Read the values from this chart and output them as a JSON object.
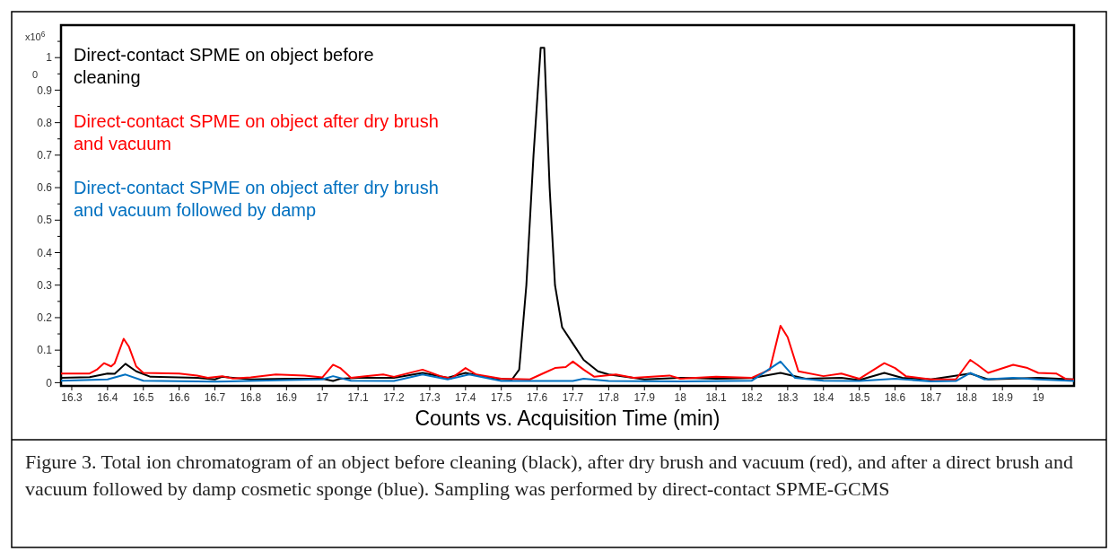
{
  "chart_data": {
    "type": "line",
    "xlabel": "Counts vs. Acquisition Time (min)",
    "ylabel": "x10$^{6}$",
    "xlim": [
      16.27,
      19.1
    ],
    "xticks": [
      16.3,
      16.4,
      16.5,
      16.6,
      16.7,
      16.8,
      16.9,
      17,
      17.1,
      17.2,
      17.3,
      17.4,
      17.5,
      17.6,
      17.7,
      17.8,
      17.9,
      18,
      18.1,
      18.2,
      18.3,
      18.4,
      18.5,
      18.6,
      18.7,
      18.8,
      18.9,
      19
    ],
    "ylim": [
      -0.01,
      1.1
    ],
    "yticks": [
      0,
      {
        "value": 0.05,
        "label": null
      },
      0.1,
      {
        "value": 0.15,
        "label": null
      },
      0.2,
      {
        "value": 0.25,
        "label": null
      },
      0.3,
      {
        "value": 0.35,
        "label": null
      },
      0.4,
      {
        "value": 0.45,
        "label": null
      },
      0.5,
      {
        "value": 0.55,
        "label": null
      },
      0.6,
      {
        "value": 0.65,
        "label": null
      },
      0.7,
      {
        "value": 0.75,
        "label": null
      },
      0.8,
      {
        "value": 0.85,
        "label": null
      },
      0.9,
      {
        "value": 0.95,
        "label": null
      },
      1,
      {
        "value": 1.05,
        "label": null
      }
    ],
    "grid": false,
    "legend": "top left",
    "line_style": "solid",
    "marker": "none",
    "annotations": [
      "Figure 3. Total ion chromatogram of an object before cleaning (black), after dry brush and vacuum (red), and after a direct brush and vacuum followed by damp cosmetic sponge (blue). Sampling was performed by direct-contact SPME-GCMS",
      "0"
    ],
    "series": [
      {
        "name": "Direct-contact SPME on object before cleaning",
        "color": "#000000",
        "x": [
          16.27,
          16.35,
          16.4,
          16.42,
          16.45,
          16.48,
          16.52,
          16.65,
          16.7,
          16.72,
          16.8,
          16.9,
          17.0,
          17.03,
          17.05,
          17.1,
          17.2,
          17.28,
          17.35,
          17.4,
          17.48,
          17.53,
          17.55,
          17.57,
          17.59,
          17.61,
          17.62,
          17.635,
          17.65,
          17.67,
          17.7,
          17.73,
          17.77,
          17.8,
          17.9,
          18.0,
          18.1,
          18.2,
          18.28,
          18.35,
          18.45,
          18.5,
          18.57,
          18.62,
          18.7,
          18.81,
          18.86,
          19.0,
          19.1
        ],
        "values": [
          0.015,
          0.017,
          0.028,
          0.027,
          0.058,
          0.035,
          0.018,
          0.015,
          0.01,
          0.018,
          0.01,
          0.012,
          0.012,
          0.005,
          0.012,
          0.015,
          0.015,
          0.03,
          0.015,
          0.03,
          0.012,
          0.01,
          0.04,
          0.3,
          0.7,
          1.03,
          1.03,
          0.6,
          0.3,
          0.17,
          0.12,
          0.07,
          0.035,
          0.025,
          0.01,
          0.015,
          0.012,
          0.014,
          0.03,
          0.012,
          0.015,
          0.008,
          0.03,
          0.015,
          0.01,
          0.028,
          0.01,
          0.015,
          0.01
        ]
      },
      {
        "name": "Direct-contact SPME on object after dry brush and vacuum",
        "color": "#ff0000",
        "x": [
          16.27,
          16.35,
          16.37,
          16.39,
          16.41,
          16.42,
          16.445,
          16.46,
          16.48,
          16.5,
          16.6,
          16.65,
          16.68,
          16.72,
          16.75,
          16.8,
          16.87,
          16.95,
          17.0,
          17.03,
          17.05,
          17.08,
          17.12,
          17.17,
          17.2,
          17.28,
          17.33,
          17.36,
          17.4,
          17.43,
          17.5,
          17.58,
          17.62,
          17.65,
          17.68,
          17.7,
          17.73,
          17.76,
          17.82,
          17.87,
          17.97,
          18.0,
          18.1,
          18.2,
          18.25,
          18.28,
          18.3,
          18.33,
          18.4,
          18.45,
          18.5,
          18.57,
          18.6,
          18.63,
          18.7,
          18.77,
          18.81,
          18.83,
          18.86,
          18.93,
          18.97,
          19.0,
          19.05,
          19.08,
          19.1
        ],
        "values": [
          0.028,
          0.028,
          0.04,
          0.06,
          0.05,
          0.06,
          0.135,
          0.11,
          0.05,
          0.03,
          0.028,
          0.022,
          0.015,
          0.02,
          0.013,
          0.016,
          0.025,
          0.022,
          0.016,
          0.055,
          0.045,
          0.015,
          0.02,
          0.025,
          0.018,
          0.04,
          0.02,
          0.013,
          0.045,
          0.025,
          0.012,
          0.01,
          0.03,
          0.045,
          0.048,
          0.065,
          0.04,
          0.018,
          0.025,
          0.015,
          0.022,
          0.012,
          0.018,
          0.015,
          0.04,
          0.175,
          0.14,
          0.035,
          0.02,
          0.028,
          0.012,
          0.06,
          0.045,
          0.02,
          0.01,
          0.01,
          0.07,
          0.055,
          0.03,
          0.055,
          0.045,
          0.03,
          0.028,
          0.01,
          0.01
        ]
      },
      {
        "name": "Direct-contact SPME on object after dry brush and vacuum followed by damp",
        "color": "#0070c0",
        "x": [
          16.27,
          16.4,
          16.45,
          16.5,
          16.7,
          16.9,
          17.0,
          17.03,
          17.08,
          17.2,
          17.28,
          17.35,
          17.41,
          17.5,
          17.7,
          17.73,
          17.8,
          18.0,
          18.2,
          18.28,
          18.32,
          18.4,
          18.5,
          18.6,
          18.7,
          18.77,
          18.81,
          18.85,
          18.93,
          19.0,
          19.1
        ],
        "values": [
          0.006,
          0.01,
          0.025,
          0.006,
          0.003,
          0.008,
          0.01,
          0.02,
          0.006,
          0.005,
          0.025,
          0.01,
          0.025,
          0.005,
          0.005,
          0.012,
          0.005,
          0.004,
          0.006,
          0.065,
          0.015,
          0.006,
          0.005,
          0.012,
          0.004,
          0.005,
          0.03,
          0.01,
          0.015,
          0.01,
          0.005
        ]
      }
    ]
  }
}
